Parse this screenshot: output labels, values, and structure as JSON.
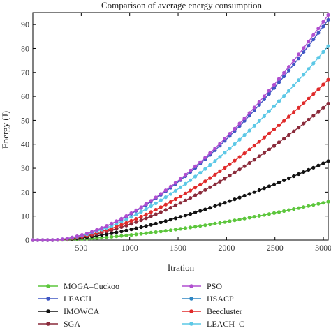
{
  "chart_data": {
    "type": "line",
    "title": "Comparison of average energy consumption",
    "xlabel": "Itration",
    "ylabel": "Energy (J)",
    "xlim": [
      0,
      3050
    ],
    "ylim": [
      0,
      95
    ],
    "xticks": [
      500,
      1000,
      1500,
      2000,
      2500,
      3000
    ],
    "yticks": [
      0,
      10,
      20,
      30,
      40,
      50,
      60,
      70,
      80,
      90
    ],
    "grid": false,
    "legend_position": "bottom",
    "curve_start": 200,
    "series": [
      {
        "name": "MOGA–Cuckoo",
        "color": "#5cc63c",
        "end_value": 16,
        "exponent": 1.6
      },
      {
        "name": "LEACH",
        "color": "#3f56c4",
        "end_value": 92,
        "exponent": 1.7
      },
      {
        "name": "IMOWCA",
        "color": "#111111",
        "end_value": 33,
        "exponent": 1.6
      },
      {
        "name": "SGA",
        "color": "#8a2a3a",
        "end_value": 57,
        "exponent": 1.7
      },
      {
        "name": "PSO",
        "color": "#b04fd0",
        "end_value": 94,
        "exponent": 1.7
      },
      {
        "name": "HSACP",
        "color": "#2f86c4",
        "end_value": 0,
        "exponent": 1.0
      },
      {
        "name": "Beecluster",
        "color": "#e02a2a",
        "end_value": 67,
        "exponent": 1.7
      },
      {
        "name": "LEACH–C",
        "color": "#5cc8e6",
        "end_value": 81,
        "exponent": 1.7
      }
    ]
  }
}
